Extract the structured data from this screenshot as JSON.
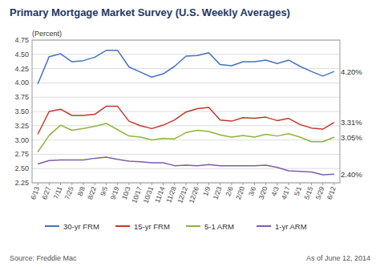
{
  "chart_data": {
    "type": "line",
    "title": "Primary Mortgage Market Survey (U.S. Weekly Averages)",
    "y_label": "(Percent)",
    "footer": [
      "Source: Freddie Mac",
      "As of June 12, 2014"
    ],
    "categories": [
      "6/13",
      "6/27",
      "7/11",
      "7/25",
      "8/8",
      "8/22",
      "9/5",
      "9/19",
      "10/3",
      "10/17",
      "10/31",
      "11/14",
      "11/28",
      "12/12",
      "12/26",
      "1/9",
      "1/23",
      "2/6",
      "2/20",
      "3/6",
      "3/20",
      "4/3",
      "4/17",
      "5/1",
      "5/15",
      "5/29",
      "6/12"
    ],
    "series": [
      {
        "name": "30-yr FRM",
        "color": "#4472C4",
        "values": [
          3.98,
          4.46,
          4.51,
          4.37,
          4.39,
          4.45,
          4.57,
          4.57,
          4.28,
          4.19,
          4.1,
          4.16,
          4.29,
          4.47,
          4.48,
          4.53,
          4.32,
          4.3,
          4.37,
          4.37,
          4.4,
          4.34,
          4.4,
          4.29,
          4.2,
          4.12,
          4.2
        ]
      },
      {
        "name": "15-yr FRM",
        "color": "#C0392B",
        "values": [
          3.1,
          3.5,
          3.54,
          3.43,
          3.43,
          3.45,
          3.59,
          3.59,
          3.33,
          3.25,
          3.2,
          3.26,
          3.35,
          3.49,
          3.55,
          3.57,
          3.35,
          3.33,
          3.39,
          3.38,
          3.4,
          3.34,
          3.38,
          3.27,
          3.21,
          3.19,
          3.31
        ]
      },
      {
        "name": "5-1 ARM",
        "color": "#8DB53A",
        "values": [
          2.79,
          3.08,
          3.26,
          3.17,
          3.2,
          3.24,
          3.29,
          3.18,
          3.07,
          3.05,
          3.0,
          3.03,
          3.02,
          3.13,
          3.17,
          3.15,
          3.09,
          3.05,
          3.08,
          3.05,
          3.1,
          3.07,
          3.11,
          3.05,
          2.97,
          2.97,
          3.05
        ]
      },
      {
        "name": "1-yr ARM",
        "color": "#7E5EA8",
        "values": [
          2.58,
          2.64,
          2.65,
          2.65,
          2.65,
          2.68,
          2.7,
          2.66,
          2.63,
          2.62,
          2.6,
          2.6,
          2.55,
          2.56,
          2.55,
          2.57,
          2.55,
          2.55,
          2.55,
          2.55,
          2.56,
          2.52,
          2.46,
          2.45,
          2.44,
          2.39,
          2.4
        ]
      }
    ],
    "annotations": [
      {
        "text": "4.20%",
        "x": "6/12",
        "y": 4.2
      },
      {
        "text": "3.31%",
        "x": "6/12",
        "y": 3.31
      },
      {
        "text": "3.05%",
        "x": "6/12",
        "y": 3.05
      },
      {
        "text": "2.40%",
        "x": "6/12",
        "y": 2.4
      }
    ],
    "ylim": [
      2.25,
      4.75
    ],
    "yticks": [
      2.25,
      {
        "value": 2.5,
        "label": "2.50"
      },
      2.75,
      {
        "value": 3,
        "label": "3.00"
      },
      3.25,
      {
        "value": 3.5,
        "label": "3.50"
      },
      3.75,
      {
        "value": 4,
        "label": "4.00"
      },
      4.25,
      {
        "value": 4.5,
        "label": "4.50"
      },
      4.75
    ],
    "grid": true,
    "legend": "bottom"
  }
}
